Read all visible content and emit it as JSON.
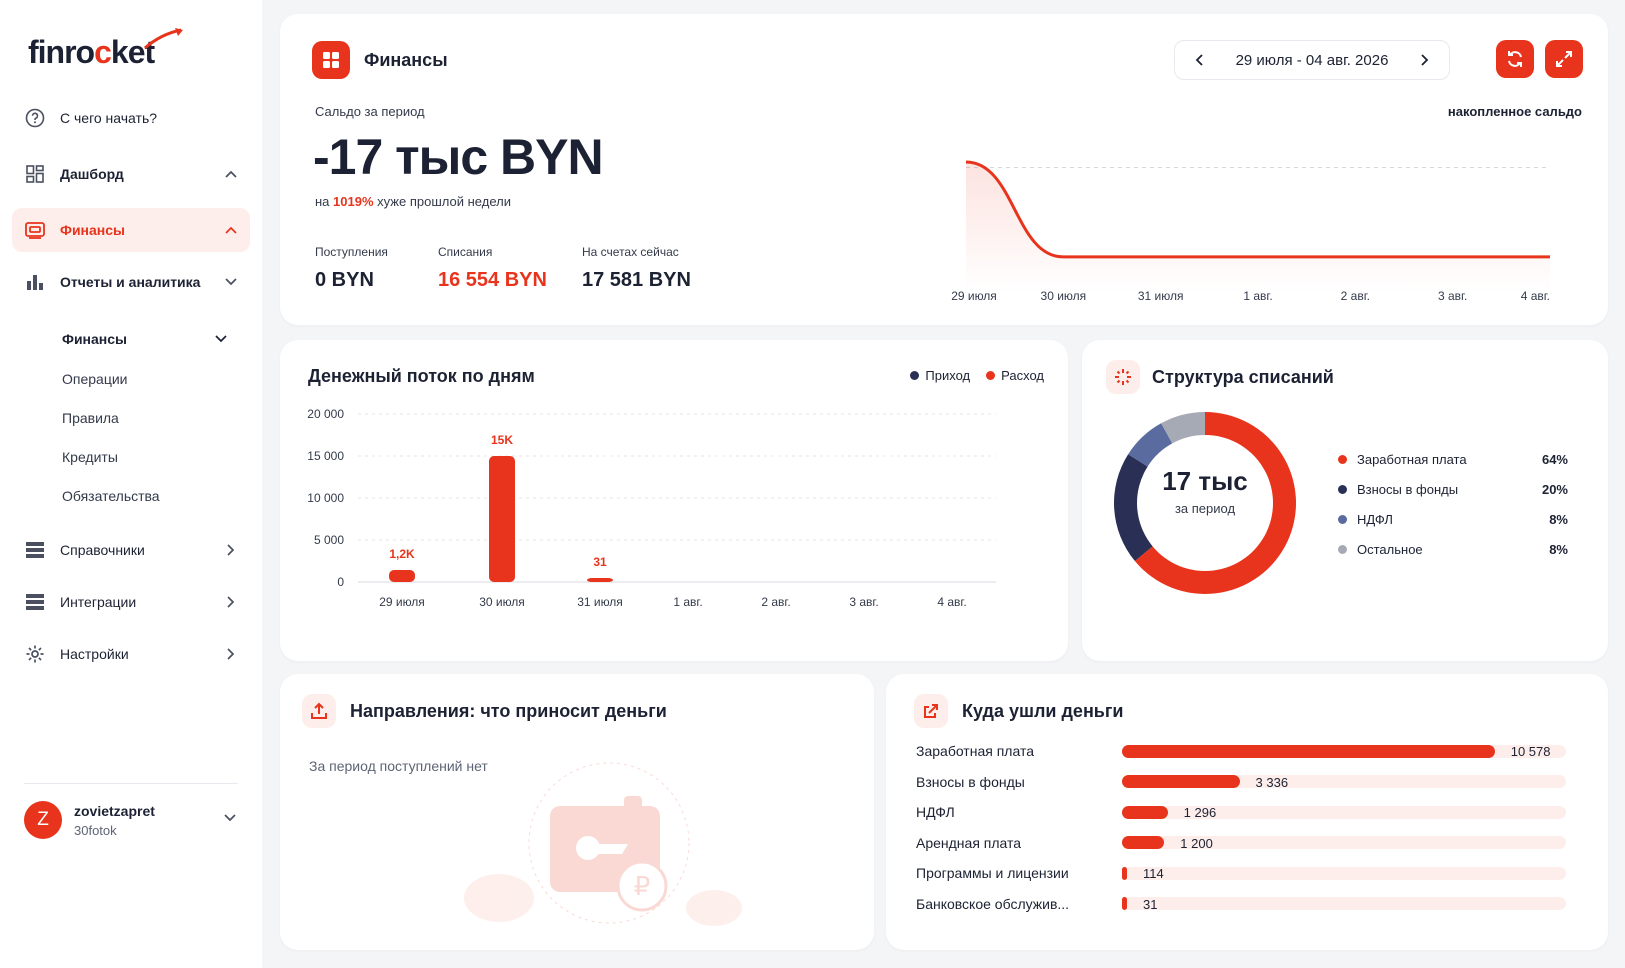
{
  "brand": {
    "logo_text_a": "finro",
    "logo_text_b": "c",
    "logo_text_c": "ket",
    "accent": "#e8341c"
  },
  "sidebar": {
    "start": "С чего начать?",
    "dashboard": "Дашборд",
    "finance": "Финансы",
    "reports": "Отчеты и аналитика",
    "sub_finance": "Финансы",
    "operations": "Операции",
    "rules": "Правила",
    "credits": "Кредиты",
    "obligations": "Обязательства",
    "directories": "Справочники",
    "integrations": "Интеграции",
    "settings": "Настройки"
  },
  "user": {
    "initial": "Z",
    "name": "zovietzapret",
    "org": "30fotok"
  },
  "finance_card": {
    "title": "Финансы",
    "period": "29 июля - 04 авг. 2026",
    "saldo_label": "Сальдо за период",
    "saldo_value": "-17 тыс BYN",
    "cmp_prefix": "на",
    "cmp_pct": "1019%",
    "cmp_suffix": "хуже прошлой недели",
    "stats": [
      {
        "label": "Поступления",
        "value": "0 BYN"
      },
      {
        "label": "Списания",
        "value": "16 554 BYN"
      },
      {
        "label": "На счетах сейчас",
        "value": "17 581 BYN"
      }
    ],
    "cum_label": "накопленное сальдо"
  },
  "chart_data": [
    {
      "type": "line",
      "title": "накопленное сальдо",
      "x": [
        "29 июля",
        "30 июля",
        "31 июля",
        "1 авг.",
        "2 авг.",
        "3 авг.",
        "4 авг."
      ],
      "values": [
        1027,
        -16554,
        -16554,
        -16554,
        -16554,
        -16554,
        -16554
      ],
      "ylim": [
        -17500,
        2500
      ]
    },
    {
      "type": "bar",
      "title": "Денежный поток по дням",
      "categories": [
        "29 июля",
        "30 июля",
        "31 июля",
        "1 авг.",
        "2 авг.",
        "3 авг.",
        "4 авг."
      ],
      "series": [
        {
          "name": "Приход",
          "values": [
            0,
            0,
            0,
            0,
            0,
            0,
            0
          ],
          "color": "#2a2f55"
        },
        {
          "name": "Расход",
          "values": [
            1200,
            15000,
            31,
            0,
            0,
            0,
            0
          ],
          "color": "#e8341c"
        }
      ],
      "data_labels": [
        "1,2K",
        "15K",
        "31",
        "",
        "",
        "",
        ""
      ],
      "yticks": [
        "0",
        "5 000",
        "10 000",
        "15 000",
        "20 000"
      ],
      "ylim": [
        0,
        20000
      ]
    },
    {
      "type": "pie",
      "title": "Структура списаний",
      "center_value": "17 тыс",
      "center_label": "за период",
      "slices": [
        {
          "name": "Заработная плата",
          "value": 64,
          "label": "64%",
          "color": "#e8341c"
        },
        {
          "name": "Взносы в фонды",
          "value": 20,
          "label": "20%",
          "color": "#2a2f55"
        },
        {
          "name": "НДФЛ",
          "value": 8,
          "label": "8%",
          "color": "#5a6b9f"
        },
        {
          "name": "Остальное",
          "value": 8,
          "label": "8%",
          "color": "#a6aab5"
        }
      ]
    },
    {
      "type": "bar",
      "title": "Куда ушли деньги",
      "categories": [
        "Заработная плата",
        "Взносы в фонды",
        "НДФЛ",
        "Арендная плата",
        "Программы и лицензии",
        "Банковское обслужив..."
      ],
      "values": [
        10578,
        3336,
        1296,
        1200,
        114,
        31
      ],
      "value_labels": [
        "10 578",
        "3 336",
        "1 296",
        "1 200",
        "114",
        "31"
      ],
      "max": 12600
    }
  ],
  "directions": {
    "title": "Направления: что приносит деньги",
    "empty": "За период поступлений нет"
  }
}
